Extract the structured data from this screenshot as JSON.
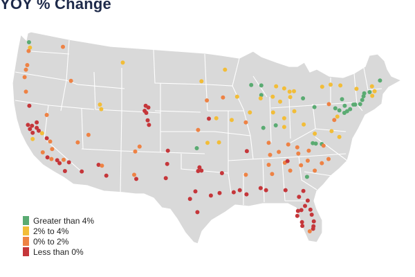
{
  "title": "YOY % Change",
  "colors": {
    "greater_than_4": "#5aab72",
    "2_to_4": "#f2bd38",
    "0_to_2": "#ee8244",
    "less_than_0": "#c5363a"
  },
  "legend": [
    {
      "label": "Greater than 4%",
      "key": "greater_than_4"
    },
    {
      "label": "2% to 4%",
      "key": "2_to_4"
    },
    {
      "label": "0% to 2%",
      "key": "0_to_2"
    },
    {
      "label": "Less than 0%",
      "key": "less_than_0"
    }
  ],
  "markets": [
    {
      "lon": -122.45,
      "lat": 48.25,
      "cat": "greater_than_4"
    },
    {
      "lon": -122.3,
      "lat": 47.6,
      "cat": "2_to_4"
    },
    {
      "lon": -122.5,
      "lat": 47.2,
      "cat": "0_to_2"
    },
    {
      "lon": -117.4,
      "lat": 47.7,
      "cat": "0_to_2"
    },
    {
      "lon": -122.7,
      "lat": 45.5,
      "cat": "0_to_2"
    },
    {
      "lon": -122.9,
      "lat": 44.95,
      "cat": "0_to_2"
    },
    {
      "lon": -123.1,
      "lat": 44.05,
      "cat": "0_to_2"
    },
    {
      "lon": -122.9,
      "lat": 42.3,
      "cat": "0_to_2"
    },
    {
      "lon": -116.2,
      "lat": 43.6,
      "cat": "0_to_2"
    },
    {
      "lon": -111.9,
      "lat": 40.75,
      "cat": "2_to_4"
    },
    {
      "lon": -111.7,
      "lat": 40.2,
      "cat": "2_to_4"
    },
    {
      "lon": -108.5,
      "lat": 45.8,
      "cat": "2_to_4"
    },
    {
      "lon": -119.8,
      "lat": 39.5,
      "cat": "0_to_2"
    },
    {
      "lon": -122.4,
      "lat": 40.6,
      "cat": "less_than_0"
    },
    {
      "lon": -122.6,
      "lat": 38.3,
      "cat": "less_than_0"
    },
    {
      "lon": -122.0,
      "lat": 38.2,
      "cat": "less_than_0"
    },
    {
      "lon": -122.3,
      "lat": 37.8,
      "cat": "less_than_0"
    },
    {
      "lon": -121.9,
      "lat": 37.35,
      "cat": "less_than_0"
    },
    {
      "lon": -121.3,
      "lat": 38.6,
      "cat": "less_than_0"
    },
    {
      "lon": -121.3,
      "lat": 37.95,
      "cat": "less_than_0"
    },
    {
      "lon": -121.0,
      "lat": 37.6,
      "cat": "less_than_0"
    },
    {
      "lon": -121.9,
      "lat": 36.6,
      "cat": "2_to_4"
    },
    {
      "lon": -120.5,
      "lat": 37.3,
      "cat": "2_to_4"
    },
    {
      "lon": -119.8,
      "lat": 36.7,
      "cat": "less_than_0"
    },
    {
      "lon": -119.3,
      "lat": 36.3,
      "cat": "0_to_2"
    },
    {
      "lon": -119.0,
      "lat": 35.4,
      "cat": "0_to_2"
    },
    {
      "lon": -120.4,
      "lat": 35.0,
      "cat": "0_to_2"
    },
    {
      "lon": -119.7,
      "lat": 34.4,
      "cat": "less_than_0"
    },
    {
      "lon": -119.1,
      "lat": 34.2,
      "cat": "0_to_2"
    },
    {
      "lon": -118.25,
      "lat": 34.05,
      "cat": "less_than_0"
    },
    {
      "lon": -117.9,
      "lat": 33.7,
      "cat": "less_than_0"
    },
    {
      "lon": -117.3,
      "lat": 34.1,
      "cat": "0_to_2"
    },
    {
      "lon": -117.1,
      "lat": 32.75,
      "cat": "less_than_0"
    },
    {
      "lon": -116.5,
      "lat": 33.8,
      "cat": "less_than_0"
    },
    {
      "lon": -115.2,
      "lat": 36.2,
      "cat": "0_to_2"
    },
    {
      "lon": -112.1,
      "lat": 33.5,
      "cat": "less_than_0"
    },
    {
      "lon": -111.6,
      "lat": 33.4,
      "cat": "0_to_2"
    },
    {
      "lon": -110.95,
      "lat": 32.2,
      "cat": "less_than_0"
    },
    {
      "lon": -114.6,
      "lat": 32.7,
      "cat": "less_than_0"
    },
    {
      "lon": -113.6,
      "lat": 37.1,
      "cat": "0_to_2"
    },
    {
      "lon": -106.65,
      "lat": 35.1,
      "cat": "0_to_2"
    },
    {
      "lon": -106.0,
      "lat": 35.7,
      "cat": "0_to_2"
    },
    {
      "lon": -106.8,
      "lat": 32.3,
      "cat": "0_to_2"
    },
    {
      "lon": -106.5,
      "lat": 31.8,
      "cat": "less_than_0"
    },
    {
      "lon": -105.1,
      "lat": 40.6,
      "cat": "less_than_0"
    },
    {
      "lon": -104.7,
      "lat": 40.4,
      "cat": "less_than_0"
    },
    {
      "lon": -105.0,
      "lat": 39.75,
      "cat": "less_than_0"
    },
    {
      "lon": -105.25,
      "lat": 40.0,
      "cat": "less_than_0"
    },
    {
      "lon": -104.8,
      "lat": 38.85,
      "cat": "less_than_0"
    },
    {
      "lon": -104.6,
      "lat": 38.3,
      "cat": "less_than_0"
    },
    {
      "lon": -96.8,
      "lat": 43.55,
      "cat": "2_to_4"
    },
    {
      "lon": -96.0,
      "lat": 41.25,
      "cat": "0_to_2"
    },
    {
      "lon": -94.6,
      "lat": 39.1,
      "cat": "2_to_4"
    },
    {
      "lon": -95.7,
      "lat": 39.05,
      "cat": "less_than_0"
    },
    {
      "lon": -97.3,
      "lat": 37.7,
      "cat": "0_to_2"
    },
    {
      "lon": -97.5,
      "lat": 35.5,
      "cat": "greater_than_4"
    },
    {
      "lon": -95.9,
      "lat": 36.15,
      "cat": "2_to_4"
    },
    {
      "lon": -94.2,
      "lat": 36.2,
      "cat": "2_to_4"
    },
    {
      "lon": -101.8,
      "lat": 35.2,
      "cat": "less_than_0"
    },
    {
      "lon": -101.9,
      "lat": 33.6,
      "cat": "less_than_0"
    },
    {
      "lon": -97.3,
      "lat": 32.75,
      "cat": "less_than_0"
    },
    {
      "lon": -96.8,
      "lat": 32.8,
      "cat": "less_than_0"
    },
    {
      "lon": -97.1,
      "lat": 33.2,
      "cat": "less_than_0"
    },
    {
      "lon": -97.7,
      "lat": 30.3,
      "cat": "less_than_0"
    },
    {
      "lon": -98.5,
      "lat": 29.4,
      "cat": "less_than_0"
    },
    {
      "lon": -95.4,
      "lat": 29.8,
      "cat": "less_than_0"
    },
    {
      "lon": -97.4,
      "lat": 27.8,
      "cat": "less_than_0"
    },
    {
      "lon": -102.1,
      "lat": 31.9,
      "cat": "less_than_0"
    },
    {
      "lon": -94.1,
      "lat": 30.1,
      "cat": "less_than_0"
    },
    {
      "lon": -93.3,
      "lat": 44.95,
      "cat": "2_to_4"
    },
    {
      "lon": -93.6,
      "lat": 41.6,
      "cat": "0_to_2"
    },
    {
      "lon": -91.5,
      "lat": 41.7,
      "cat": "2_to_4"
    },
    {
      "lon": -89.4,
      "lat": 43.1,
      "cat": "greater_than_4"
    },
    {
      "lon": -87.9,
      "lat": 43.05,
      "cat": "greater_than_4"
    },
    {
      "lon": -87.9,
      "lat": 41.9,
      "cat": "greater_than_4"
    },
    {
      "lon": -88.0,
      "lat": 41.5,
      "cat": "2_to_4"
    },
    {
      "lon": -89.6,
      "lat": 39.8,
      "cat": "2_to_4"
    },
    {
      "lon": -90.2,
      "lat": 38.6,
      "cat": "0_to_2"
    },
    {
      "lon": -92.3,
      "lat": 38.9,
      "cat": "2_to_4"
    },
    {
      "lon": -85.7,
      "lat": 42.95,
      "cat": "2_to_4"
    },
    {
      "lon": -84.5,
      "lat": 42.7,
      "cat": "2_to_4"
    },
    {
      "lon": -83.7,
      "lat": 42.3,
      "cat": "2_to_4"
    },
    {
      "lon": -83.05,
      "lat": 42.35,
      "cat": "2_to_4"
    },
    {
      "lon": -83.6,
      "lat": 41.65,
      "cat": "2_to_4"
    },
    {
      "lon": -86.2,
      "lat": 41.7,
      "cat": "2_to_4"
    },
    {
      "lon": -85.1,
      "lat": 41.1,
      "cat": "2_to_4"
    },
    {
      "lon": -86.15,
      "lat": 39.8,
      "cat": "2_to_4"
    },
    {
      "lon": -84.5,
      "lat": 39.1,
      "cat": "2_to_4"
    },
    {
      "lon": -83.0,
      "lat": 39.95,
      "cat": "2_to_4"
    },
    {
      "lon": -81.7,
      "lat": 41.5,
      "cat": "greater_than_4"
    },
    {
      "lon": -80.0,
      "lat": 40.45,
      "cat": "greater_than_4"
    },
    {
      "lon": -85.75,
      "lat": 38.25,
      "cat": "greater_than_4"
    },
    {
      "lon": -84.5,
      "lat": 38.05,
      "cat": "2_to_4"
    },
    {
      "lon": -87.6,
      "lat": 37.95,
      "cat": "greater_than_4"
    },
    {
      "lon": -86.8,
      "lat": 36.15,
      "cat": "0_to_2"
    },
    {
      "lon": -83.9,
      "lat": 35.95,
      "cat": "0_to_2"
    },
    {
      "lon": -85.3,
      "lat": 35.05,
      "cat": "0_to_2"
    },
    {
      "lon": -90.05,
      "lat": 35.15,
      "cat": "less_than_0"
    },
    {
      "lon": -86.8,
      "lat": 33.5,
      "cat": "0_to_2"
    },
    {
      "lon": -86.6,
      "lat": 34.7,
      "cat": "0_to_2"
    },
    {
      "lon": -86.3,
      "lat": 32.4,
      "cat": "0_to_2"
    },
    {
      "lon": -88.0,
      "lat": 30.7,
      "cat": "less_than_0"
    },
    {
      "lon": -90.2,
      "lat": 32.3,
      "cat": "0_to_2"
    },
    {
      "lon": -91.1,
      "lat": 30.45,
      "cat": "less_than_0"
    },
    {
      "lon": -90.1,
      "lat": 29.95,
      "cat": "less_than_0"
    },
    {
      "lon": -92.0,
      "lat": 30.2,
      "cat": "less_than_0"
    },
    {
      "lon": -93.75,
      "lat": 32.5,
      "cat": "less_than_0"
    },
    {
      "lon": -84.4,
      "lat": 33.75,
      "cat": "0_to_2"
    },
    {
      "lon": -83.6,
      "lat": 32.8,
      "cat": "0_to_2"
    },
    {
      "lon": -84.0,
      "lat": 33.95,
      "cat": "less_than_0"
    },
    {
      "lon": -82.0,
      "lat": 33.45,
      "cat": "0_to_2"
    },
    {
      "lon": -81.1,
      "lat": 32.05,
      "cat": "greater_than_4"
    },
    {
      "lon": -81.0,
      "lat": 34.0,
      "cat": "0_to_2"
    },
    {
      "lon": -82.4,
      "lat": 34.85,
      "cat": "0_to_2"
    },
    {
      "lon": -80.85,
      "lat": 35.2,
      "cat": "0_to_2"
    },
    {
      "lon": -80.25,
      "lat": 36.1,
      "cat": "greater_than_4"
    },
    {
      "lon": -79.8,
      "lat": 36.05,
      "cat": "greater_than_4"
    },
    {
      "lon": -78.9,
      "lat": 36.0,
      "cat": "greater_than_4"
    },
    {
      "lon": -78.65,
      "lat": 35.8,
      "cat": "0_to_2"
    },
    {
      "lon": -82.55,
      "lat": 35.6,
      "cat": "0_to_2"
    },
    {
      "lon": -77.9,
      "lat": 34.2,
      "cat": "0_to_2"
    },
    {
      "lon": -79.95,
      "lat": 32.8,
      "cat": "0_to_2"
    },
    {
      "lon": -78.9,
      "lat": 33.7,
      "cat": "0_to_2"
    },
    {
      "lon": -87.2,
      "lat": 30.45,
      "cat": "less_than_0"
    },
    {
      "lon": -84.3,
      "lat": 30.45,
      "cat": "less_than_0"
    },
    {
      "lon": -81.65,
      "lat": 30.35,
      "cat": "less_than_0"
    },
    {
      "lon": -81.4,
      "lat": 28.55,
      "cat": "less_than_0"
    },
    {
      "lon": -81.0,
      "lat": 29.2,
      "cat": "less_than_0"
    },
    {
      "lon": -82.45,
      "lat": 27.95,
      "cat": "less_than_0"
    },
    {
      "lon": -82.55,
      "lat": 27.35,
      "cat": "less_than_0"
    },
    {
      "lon": -81.85,
      "lat": 26.6,
      "cat": "less_than_0"
    },
    {
      "lon": -81.8,
      "lat": 26.15,
      "cat": "less_than_0"
    },
    {
      "lon": -80.1,
      "lat": 26.7,
      "cat": "less_than_0"
    },
    {
      "lon": -80.15,
      "lat": 26.1,
      "cat": "less_than_0"
    },
    {
      "lon": -80.2,
      "lat": 25.8,
      "cat": "less_than_0"
    },
    {
      "lon": -80.6,
      "lat": 28.1,
      "cat": "less_than_0"
    },
    {
      "lon": -80.4,
      "lat": 27.5,
      "cat": "less_than_0"
    },
    {
      "lon": -82.3,
      "lat": 29.65,
      "cat": "less_than_0"
    },
    {
      "lon": -81.95,
      "lat": 28.05,
      "cat": "less_than_0"
    },
    {
      "lon": -80.7,
      "lat": 25.5,
      "cat": "0_to_2"
    },
    {
      "lon": -77.45,
      "lat": 37.55,
      "cat": "2_to_4"
    },
    {
      "lon": -76.3,
      "lat": 36.85,
      "cat": "2_to_4"
    },
    {
      "lon": -79.95,
      "lat": 37.25,
      "cat": "2_to_4"
    },
    {
      "lon": -81.6,
      "lat": 38.35,
      "cat": "2_to_4"
    },
    {
      "lon": -77.05,
      "lat": 38.9,
      "cat": "0_to_2"
    },
    {
      "lon": -76.6,
      "lat": 39.3,
      "cat": "2_to_4"
    },
    {
      "lon": -75.55,
      "lat": 39.75,
      "cat": "greater_than_4"
    },
    {
      "lon": -75.15,
      "lat": 39.95,
      "cat": "greater_than_4"
    },
    {
      "lon": -74.7,
      "lat": 40.2,
      "cat": "greater_than_4"
    },
    {
      "lon": -74.2,
      "lat": 40.75,
      "cat": "greater_than_4"
    },
    {
      "lon": -73.95,
      "lat": 40.75,
      "cat": "greater_than_4"
    },
    {
      "lon": -73.2,
      "lat": 40.8,
      "cat": "greater_than_4"
    },
    {
      "lon": -72.9,
      "lat": 41.3,
      "cat": "greater_than_4"
    },
    {
      "lon": -72.7,
      "lat": 41.75,
      "cat": "greater_than_4"
    },
    {
      "lon": -76.9,
      "lat": 40.3,
      "cat": "greater_than_4"
    },
    {
      "lon": -75.5,
      "lat": 40.6,
      "cat": "greater_than_4"
    },
    {
      "lon": -76.3,
      "lat": 40.05,
      "cat": "greater_than_4"
    },
    {
      "lon": -75.9,
      "lat": 41.4,
      "cat": "greater_than_4"
    },
    {
      "lon": -73.75,
      "lat": 42.65,
      "cat": "2_to_4"
    },
    {
      "lon": -76.15,
      "lat": 43.05,
      "cat": "2_to_4"
    },
    {
      "lon": -77.6,
      "lat": 43.15,
      "cat": "2_to_4"
    },
    {
      "lon": -78.85,
      "lat": 42.9,
      "cat": "2_to_4"
    },
    {
      "lon": -71.05,
      "lat": 42.35,
      "cat": "2_to_4"
    },
    {
      "lon": -71.4,
      "lat": 41.8,
      "cat": "2_to_4"
    },
    {
      "lon": -71.8,
      "lat": 42.25,
      "cat": "greater_than_4"
    },
    {
      "lon": -72.6,
      "lat": 42.1,
      "cat": "greater_than_4"
    },
    {
      "lon": -71.45,
      "lat": 42.95,
      "cat": "2_to_4"
    },
    {
      "lon": -70.25,
      "lat": 43.65,
      "cat": "greater_than_4"
    },
    {
      "lon": -77.85,
      "lat": 40.8,
      "cat": "0_to_2"
    }
  ]
}
